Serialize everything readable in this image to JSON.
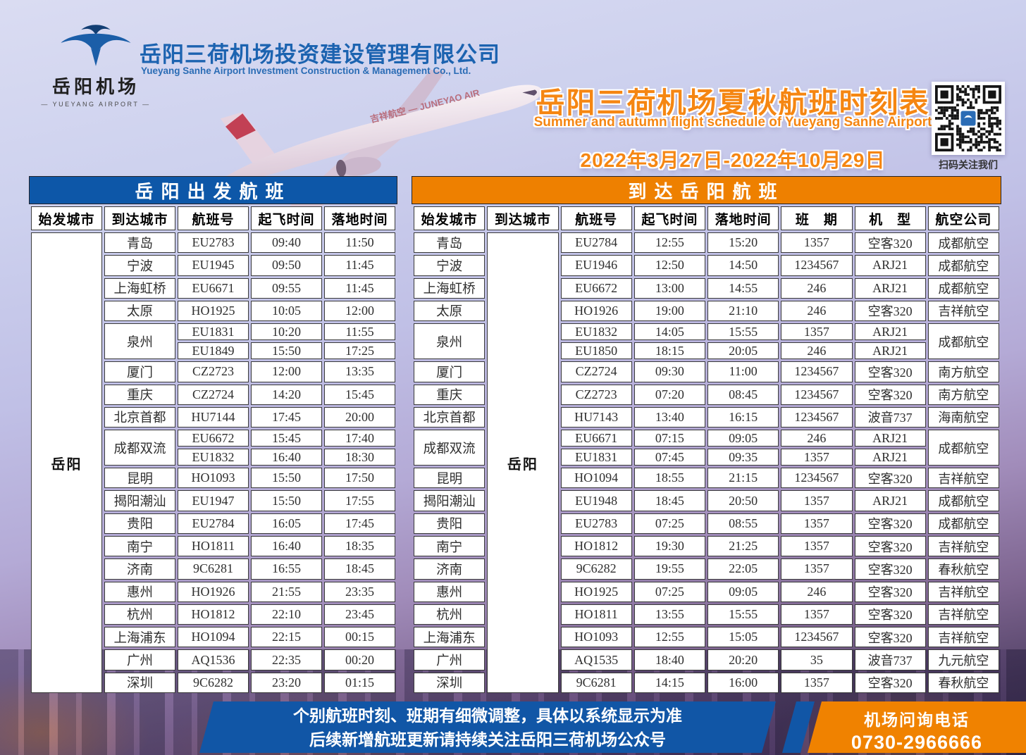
{
  "colors": {
    "table_blue": "#0d57a8",
    "table_orange": "#ee8000",
    "title_orange": "#f58612",
    "footer_blue": "#1156a6",
    "footer_orange": "#f08200",
    "brand_blue": "#1c63b0"
  },
  "header": {
    "logo": {
      "cn": "岳阳机场",
      "en": "— YUEYANG AIRPORT —"
    },
    "company_cn": "岳阳三荷机场投资建设管理有限公司",
    "company_en": "Yueyang Sanhe Airport Investment Construction & Management Co., Ltd.",
    "title": "岳阳三荷机场夏秋航班时刻表",
    "subtitle": "Summer and autumn flight schedule of Yueyang Sanhe Airport",
    "date_range": "2022年3月27日-2022年10月29日",
    "qr_caption": "扫码关注我们",
    "plane_text": "吉祥航空 — JUNEYAO AIR"
  },
  "departures": {
    "title": "岳阳出发航班",
    "merged_label": "岳阳",
    "columns": [
      "始发城市",
      "到达城市",
      "航班号",
      "起飞时间",
      "落地时间"
    ],
    "groups": [
      {
        "city": "青岛",
        "flights": [
          {
            "no": "EU2783",
            "dep": "09:40",
            "arr": "11:50"
          }
        ]
      },
      {
        "city": "宁波",
        "flights": [
          {
            "no": "EU1945",
            "dep": "09:50",
            "arr": "11:45"
          }
        ]
      },
      {
        "city": "上海虹桥",
        "flights": [
          {
            "no": "EU6671",
            "dep": "09:55",
            "arr": "11:45"
          }
        ]
      },
      {
        "city": "太原",
        "flights": [
          {
            "no": "HO1925",
            "dep": "10:05",
            "arr": "12:00"
          }
        ]
      },
      {
        "city": "泉州",
        "flights": [
          {
            "no": "EU1831",
            "dep": "10:20",
            "arr": "11:55"
          },
          {
            "no": "EU1849",
            "dep": "15:50",
            "arr": "17:25"
          }
        ]
      },
      {
        "city": "厦门",
        "flights": [
          {
            "no": "CZ2723",
            "dep": "12:00",
            "arr": "13:35"
          }
        ]
      },
      {
        "city": "重庆",
        "flights": [
          {
            "no": "CZ2724",
            "dep": "14:20",
            "arr": "15:45"
          }
        ]
      },
      {
        "city": "北京首都",
        "flights": [
          {
            "no": "HU7144",
            "dep": "17:45",
            "arr": "20:00"
          }
        ]
      },
      {
        "city": "成都双流",
        "flights": [
          {
            "no": "EU6672",
            "dep": "15:45",
            "arr": "17:40"
          },
          {
            "no": "EU1832",
            "dep": "16:40",
            "arr": "18:30"
          }
        ]
      },
      {
        "city": "昆明",
        "flights": [
          {
            "no": "HO1093",
            "dep": "15:50",
            "arr": "17:50"
          }
        ]
      },
      {
        "city": "揭阳潮汕",
        "flights": [
          {
            "no": "EU1947",
            "dep": "15:50",
            "arr": "17:55"
          }
        ]
      },
      {
        "city": "贵阳",
        "flights": [
          {
            "no": "EU2784",
            "dep": "16:05",
            "arr": "17:45"
          }
        ]
      },
      {
        "city": "南宁",
        "flights": [
          {
            "no": "HO1811",
            "dep": "16:40",
            "arr": "18:35"
          }
        ]
      },
      {
        "city": "济南",
        "flights": [
          {
            "no": "9C6281",
            "dep": "16:55",
            "arr": "18:45"
          }
        ]
      },
      {
        "city": "惠州",
        "flights": [
          {
            "no": "HO1926",
            "dep": "21:55",
            "arr": "23:35"
          }
        ]
      },
      {
        "city": "杭州",
        "flights": [
          {
            "no": "HO1812",
            "dep": "22:10",
            "arr": "23:45"
          }
        ]
      },
      {
        "city": "上海浦东",
        "flights": [
          {
            "no": "HO1094",
            "dep": "22:15",
            "arr": "00:15"
          }
        ]
      },
      {
        "city": "广州",
        "flights": [
          {
            "no": "AQ1536",
            "dep": "22:35",
            "arr": "00:20"
          }
        ]
      },
      {
        "city": "深圳",
        "flights": [
          {
            "no": "9C6282",
            "dep": "23:20",
            "arr": "01:15"
          }
        ]
      }
    ]
  },
  "arrivals": {
    "title": "到达岳阳航班",
    "merged_label": "岳阳",
    "columns": [
      "始发城市",
      "到达城市",
      "航班号",
      "起飞时间",
      "落地时间",
      "班　期",
      "机　型",
      "航空公司"
    ],
    "groups": [
      {
        "city": "青岛",
        "flights": [
          {
            "no": "EU2784",
            "dep": "12:55",
            "arr": "15:20",
            "days": "1357",
            "aircraft": "空客320",
            "airline": "成都航空"
          }
        ]
      },
      {
        "city": "宁波",
        "flights": [
          {
            "no": "EU1946",
            "dep": "12:50",
            "arr": "14:50",
            "days": "1234567",
            "aircraft": "ARJ21",
            "airline": "成都航空"
          }
        ]
      },
      {
        "city": "上海虹桥",
        "flights": [
          {
            "no": "EU6672",
            "dep": "13:00",
            "arr": "14:55",
            "days": "246",
            "aircraft": "ARJ21",
            "airline": "成都航空"
          }
        ]
      },
      {
        "city": "太原",
        "flights": [
          {
            "no": "HO1926",
            "dep": "19:00",
            "arr": "21:10",
            "days": "246",
            "aircraft": "空客320",
            "airline": "吉祥航空"
          }
        ]
      },
      {
        "city": "泉州",
        "airline": "成都航空",
        "flights": [
          {
            "no": "EU1832",
            "dep": "14:05",
            "arr": "15:55",
            "days": "1357",
            "aircraft": "ARJ21"
          },
          {
            "no": "EU1850",
            "dep": "18:15",
            "arr": "20:05",
            "days": "246",
            "aircraft": "ARJ21"
          }
        ]
      },
      {
        "city": "厦门",
        "flights": [
          {
            "no": "CZ2724",
            "dep": "09:30",
            "arr": "11:00",
            "days": "1234567",
            "aircraft": "空客320",
            "airline": "南方航空"
          }
        ]
      },
      {
        "city": "重庆",
        "flights": [
          {
            "no": "CZ2723",
            "dep": "07:20",
            "arr": "08:45",
            "days": "1234567",
            "aircraft": "空客320",
            "airline": "南方航空"
          }
        ]
      },
      {
        "city": "北京首都",
        "flights": [
          {
            "no": "HU7143",
            "dep": "13:40",
            "arr": "16:15",
            "days": "1234567",
            "aircraft": "波音737",
            "airline": "海南航空"
          }
        ]
      },
      {
        "city": "成都双流",
        "airline": "成都航空",
        "flights": [
          {
            "no": "EU6671",
            "dep": "07:15",
            "arr": "09:05",
            "days": "246",
            "aircraft": "ARJ21"
          },
          {
            "no": "EU1831",
            "dep": "07:45",
            "arr": "09:35",
            "days": "1357",
            "aircraft": "ARJ21"
          }
        ]
      },
      {
        "city": "昆明",
        "flights": [
          {
            "no": "HO1094",
            "dep": "18:55",
            "arr": "21:15",
            "days": "1234567",
            "aircraft": "空客320",
            "airline": "吉祥航空"
          }
        ]
      },
      {
        "city": "揭阳潮汕",
        "flights": [
          {
            "no": "EU1948",
            "dep": "18:45",
            "arr": "20:50",
            "days": "1357",
            "aircraft": "ARJ21",
            "airline": "成都航空"
          }
        ]
      },
      {
        "city": "贵阳",
        "flights": [
          {
            "no": "EU2783",
            "dep": "07:25",
            "arr": "08:55",
            "days": "1357",
            "aircraft": "空客320",
            "airline": "成都航空"
          }
        ]
      },
      {
        "city": "南宁",
        "flights": [
          {
            "no": "HO1812",
            "dep": "19:30",
            "arr": "21:25",
            "days": "1357",
            "aircraft": "空客320",
            "airline": "吉祥航空"
          }
        ]
      },
      {
        "city": "济南",
        "flights": [
          {
            "no": "9C6282",
            "dep": "19:55",
            "arr": "22:05",
            "days": "1357",
            "aircraft": "空客320",
            "airline": "春秋航空"
          }
        ]
      },
      {
        "city": "惠州",
        "flights": [
          {
            "no": "HO1925",
            "dep": "07:25",
            "arr": "09:05",
            "days": "246",
            "aircraft": "空客320",
            "airline": "吉祥航空"
          }
        ]
      },
      {
        "city": "杭州",
        "flights": [
          {
            "no": "HO1811",
            "dep": "13:55",
            "arr": "15:55",
            "days": "1357",
            "aircraft": "空客320",
            "airline": "吉祥航空"
          }
        ]
      },
      {
        "city": "上海浦东",
        "flights": [
          {
            "no": "HO1093",
            "dep": "12:55",
            "arr": "15:05",
            "days": "1234567",
            "aircraft": "空客320",
            "airline": "吉祥航空"
          }
        ]
      },
      {
        "city": "广州",
        "flights": [
          {
            "no": "AQ1535",
            "dep": "18:40",
            "arr": "20:20",
            "days": "35",
            "aircraft": "波音737",
            "airline": "九元航空"
          }
        ]
      },
      {
        "city": "深圳",
        "flights": [
          {
            "no": "9C6281",
            "dep": "14:15",
            "arr": "16:00",
            "days": "1357",
            "aircraft": "空客320",
            "airline": "春秋航空"
          }
        ]
      }
    ]
  },
  "footer": {
    "notice_line1": "个别航班时刻、班期有细微调整，具体以系统显示为准",
    "notice_line2": "后续新增航班更新请持续关注岳阳三荷机场公众号",
    "phone_label": "机场问询电话",
    "phone_number": "0730-2966666"
  }
}
